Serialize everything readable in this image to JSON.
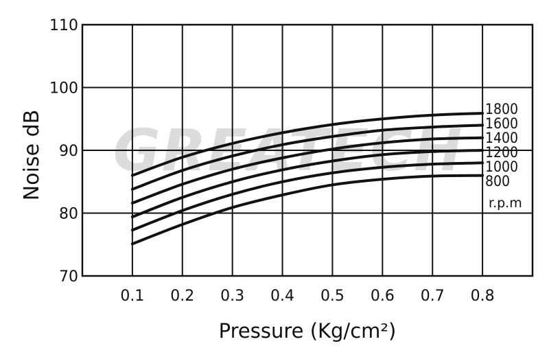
{
  "watermark": "GREATECH",
  "chart_data": {
    "type": "line",
    "title": "",
    "xlabel": "Pressure (Kg/cm²)",
    "ylabel": "Noise dB",
    "xlim": [
      0,
      0.9
    ],
    "ylim": [
      70,
      110
    ],
    "x_ticks": [
      "0.1",
      "0.2",
      "0.3",
      "0.4",
      "0.5",
      "0.6",
      "0.7",
      "0.8"
    ],
    "y_ticks": [
      "70",
      "80",
      "90",
      "100",
      "110"
    ],
    "grid": true,
    "series_unit": "r.p.m",
    "x": [
      0.1,
      0.2,
      0.3,
      0.4,
      0.5,
      0.6,
      0.7,
      0.8
    ],
    "series": [
      {
        "name": "1800",
        "values": [
          86.0,
          88.9,
          91.1,
          92.8,
          94.1,
          95.0,
          95.6,
          95.9
        ]
      },
      {
        "name": "1600",
        "values": [
          83.8,
          86.8,
          89.1,
          90.9,
          92.2,
          93.2,
          93.7,
          94.0
        ]
      },
      {
        "name": "1400",
        "values": [
          81.6,
          84.6,
          87.0,
          88.8,
          90.2,
          91.2,
          91.8,
          92.0
        ]
      },
      {
        "name": "1200",
        "values": [
          79.4,
          82.5,
          85.0,
          86.9,
          88.3,
          89.3,
          89.8,
          90.0
        ]
      },
      {
        "name": "1000",
        "values": [
          77.3,
          80.4,
          83.0,
          85.0,
          86.4,
          87.3,
          87.8,
          88.0
        ]
      },
      {
        "name": "800",
        "values": [
          75.1,
          78.2,
          80.9,
          82.9,
          84.5,
          85.4,
          85.9,
          86.0
        ]
      }
    ]
  }
}
